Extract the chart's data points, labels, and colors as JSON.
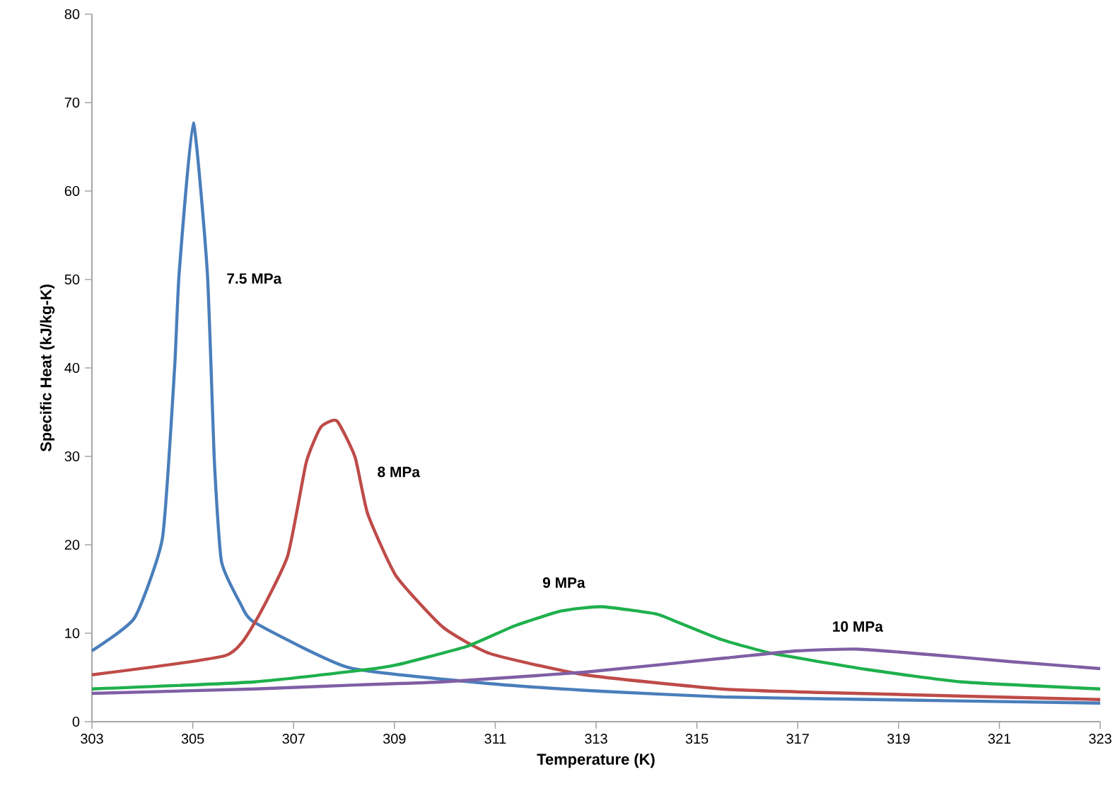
{
  "chart_data": {
    "type": "line",
    "xlabel": "Temperature (K)",
    "ylabel": "Specific Heat (kJ/kg-K)",
    "xlim": [
      303,
      323
    ],
    "ylim": [
      0,
      80
    ],
    "xticks": [
      303,
      305,
      307,
      309,
      311,
      313,
      315,
      317,
      319,
      321,
      323
    ],
    "yticks": [
      0,
      10,
      20,
      30,
      40,
      50,
      60,
      70,
      80
    ],
    "series": [
      {
        "name": "7.5 MPa",
        "color": "#4a7ebb",
        "x": [
          303,
          303.84,
          304.4,
          304.64,
          304.73,
          305.01,
          305.29,
          305.43,
          305.57,
          305.95,
          306.23,
          308.1,
          310.9,
          313.24,
          315.5,
          317.4,
          323
        ],
        "values": [
          8.0,
          11.7,
          20.8,
          40,
          50.7,
          67.7,
          50.7,
          29.3,
          18.1,
          13.3,
          11.2,
          6.1,
          4.3,
          3.4,
          2.8,
          2.6,
          2.1
        ]
      },
      {
        "name": "8 MPa",
        "color": "#be4b48",
        "x": [
          303,
          305.66,
          306.23,
          306.88,
          307.25,
          307.54,
          307.86,
          308.22,
          308.47,
          309.03,
          309.96,
          310.9,
          312.77,
          315.48,
          317.45,
          323
        ],
        "values": [
          5.3,
          7.5,
          11.2,
          18.7,
          29.3,
          33.3,
          34.0,
          29.9,
          23.5,
          16.5,
          10.7,
          7.7,
          5.3,
          3.7,
          3.3,
          2.5
        ]
      },
      {
        "name": "9 MPa",
        "color": "#1fb04c",
        "x": [
          303,
          306.23,
          308.47,
          309.03,
          310.43,
          311.37,
          312.3,
          313.1,
          314.17,
          314.64,
          315.48,
          316.51,
          318.38,
          320.25,
          323
        ],
        "values": [
          3.7,
          4.5,
          5.9,
          6.4,
          8.5,
          10.8,
          12.5,
          13.0,
          12.2,
          11.2,
          9.3,
          7.7,
          5.9,
          4.5,
          3.7
        ]
      },
      {
        "name": "10 MPa",
        "color": "#7f5fa5",
        "x": [
          303,
          306.23,
          308.47,
          309.96,
          312.77,
          315.57,
          316.97,
          318.2,
          319.8,
          321.2,
          323
        ],
        "values": [
          3.2,
          3.7,
          4.2,
          4.5,
          5.6,
          7.2,
          8.0,
          8.2,
          7.5,
          6.8,
          6.0
        ]
      }
    ]
  }
}
